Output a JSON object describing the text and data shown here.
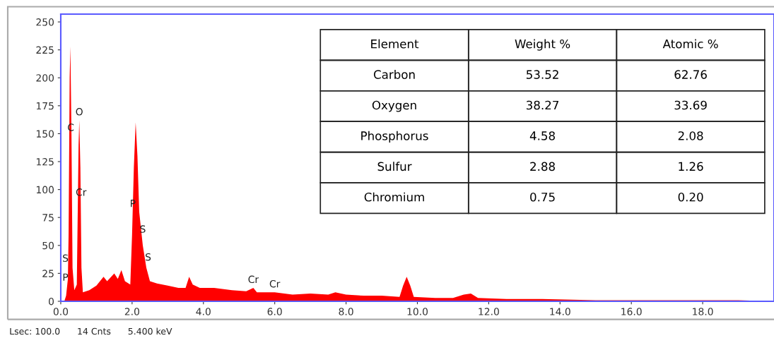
{
  "chart_data": {
    "type": "area",
    "x": [
      0.1,
      0.15,
      0.2,
      0.22,
      0.25,
      0.27,
      0.3,
      0.33,
      0.38,
      0.45,
      0.5,
      0.52,
      0.55,
      0.58,
      0.62,
      0.8,
      1.0,
      1.2,
      1.3,
      1.5,
      1.6,
      1.7,
      1.8,
      1.95,
      2.0,
      2.05,
      2.1,
      2.15,
      2.2,
      2.3,
      2.4,
      2.5,
      2.7,
      3.0,
      3.3,
      3.5,
      3.6,
      3.7,
      3.9,
      4.3,
      4.8,
      5.2,
      5.4,
      5.5,
      6.0,
      6.5,
      7.0,
      7.5,
      7.7,
      8.0,
      8.5,
      9.0,
      9.5,
      9.6,
      9.7,
      9.8,
      9.9,
      10.5,
      11.0,
      11.3,
      11.5,
      11.7,
      12.5,
      13.5,
      15.0,
      17.0,
      19.0,
      20.0
    ],
    "series": [
      {
        "color": "#ff0000",
        "values": [
          0,
          5,
          20,
          60,
          200,
          228,
          150,
          30,
          10,
          15,
          140,
          162,
          120,
          30,
          8,
          10,
          14,
          22,
          18,
          25,
          20,
          28,
          18,
          15,
          60,
          120,
          160,
          130,
          80,
          50,
          30,
          18,
          16,
          14,
          12,
          12,
          22,
          15,
          12,
          12,
          10,
          9,
          12,
          8,
          8,
          6,
          7,
          6,
          8,
          6,
          5,
          5,
          4,
          14,
          22,
          14,
          4,
          3,
          3,
          6,
          7,
          3,
          2,
          2,
          1,
          1,
          1,
          0
        ]
      }
    ],
    "xlim": [
      0,
      20
    ],
    "ylim": [
      0,
      257
    ],
    "xticks": [
      {
        "value": 0,
        "label": "0.0"
      },
      {
        "value": 2,
        "label": "2.0"
      },
      {
        "value": 4,
        "label": "4.0"
      },
      {
        "value": 6,
        "label": "6.0"
      },
      {
        "value": 8,
        "label": "8.0"
      },
      {
        "value": 10,
        "label": "10.0"
      },
      {
        "value": 12,
        "label": "12.0"
      },
      {
        "value": 14,
        "label": "14.0"
      },
      {
        "value": 16,
        "label": "16.0"
      },
      {
        "value": 18,
        "label": "18.0"
      }
    ],
    "yticks": [
      0,
      25,
      50,
      75,
      100,
      125,
      150,
      175,
      200,
      225,
      250
    ],
    "grid": false,
    "legend": false,
    "annotations": [
      {
        "text": "C",
        "x": 0.28,
        "y": 148
      },
      {
        "text": "O",
        "x": 0.52,
        "y": 162
      },
      {
        "text": "Cr",
        "x": 0.57,
        "y": 90
      },
      {
        "text": "P",
        "x": 2.02,
        "y": 80
      },
      {
        "text": "S",
        "x": 2.3,
        "y": 57
      },
      {
        "text": "S",
        "x": 2.45,
        "y": 32
      },
      {
        "text": "S",
        "x": 0.13,
        "y": 31
      },
      {
        "text": "P",
        "x": 0.13,
        "y": 14
      },
      {
        "text": "Cr",
        "x": 5.4,
        "y": 12
      },
      {
        "text": "Cr",
        "x": 6.0,
        "y": 8
      },
      "Element",
      "Weight %",
      "Atomic %",
      "Carbon",
      "53.52",
      "62.76",
      "Oxygen",
      "38.27",
      "33.69",
      "Phosphorus",
      "4.58",
      "2.08",
      "Sulfur",
      "2.88",
      "1.26",
      "Chromium",
      "0.75",
      "0.20",
      "Lsec: 100.0      14 Cnts      5.400 keV"
    ]
  }
}
